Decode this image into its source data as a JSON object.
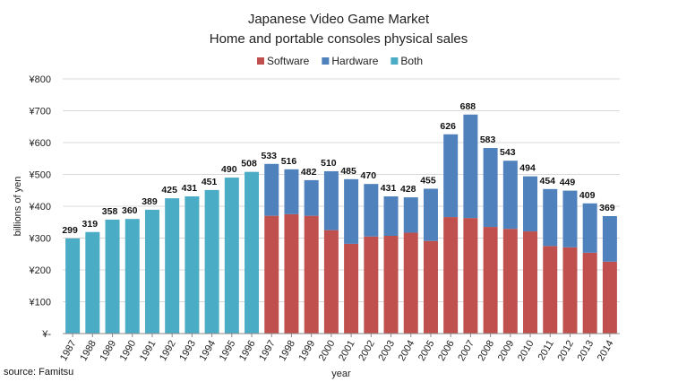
{
  "chart_data": {
    "type": "bar",
    "stacked": true,
    "title": "Japanese Video Game Market",
    "subtitle": "Home and portable consoles physical sales",
    "xlabel": "year",
    "ylabel": "billions of yen",
    "ylim": [
      0,
      800
    ],
    "yticks": [
      "¥-",
      "¥100",
      "¥200",
      "¥300",
      "¥400",
      "¥500",
      "¥600",
      "¥700",
      "¥800"
    ],
    "grid": true,
    "legend_position": "top",
    "categories": [
      "1987",
      "1988",
      "1989",
      "1990",
      "1991",
      "1992",
      "1993",
      "1994",
      "1995",
      "1996",
      "1997",
      "1998",
      "1999",
      "2000",
      "2001",
      "2002",
      "2003",
      "2004",
      "2005",
      "2006",
      "2007",
      "2008",
      "2009",
      "2010",
      "2011",
      "2012",
      "2013",
      "2014"
    ],
    "series": [
      {
        "name": "Software",
        "color": "#c0504d",
        "values": [
          null,
          null,
          null,
          null,
          null,
          null,
          null,
          null,
          null,
          null,
          370,
          375,
          370,
          325,
          282,
          305,
          307,
          317,
          291,
          366,
          363,
          335,
          329,
          321,
          275,
          271,
          254,
          226
        ]
      },
      {
        "name": "Hardware",
        "color": "#4f81bd",
        "values": [
          null,
          null,
          null,
          null,
          null,
          null,
          null,
          null,
          null,
          null,
          163,
          141,
          112,
          185,
          203,
          165,
          124,
          111,
          164,
          260,
          325,
          248,
          214,
          173,
          179,
          178,
          155,
          143
        ]
      },
      {
        "name": "Both",
        "color": "#4bacc6",
        "values": [
          299,
          319,
          358,
          360,
          389,
          425,
          431,
          451,
          490,
          508,
          null,
          null,
          null,
          null,
          null,
          null,
          null,
          null,
          null,
          null,
          null,
          null,
          null,
          null,
          null,
          null,
          null,
          null
        ]
      }
    ],
    "totals": [
      299,
      319,
      358,
      360,
      389,
      425,
      431,
      451,
      490,
      508,
      533,
      516,
      482,
      510,
      485,
      470,
      431,
      428,
      455,
      626,
      688,
      583,
      543,
      494,
      454,
      449,
      409,
      369
    ],
    "source": "source: Famitsu"
  }
}
